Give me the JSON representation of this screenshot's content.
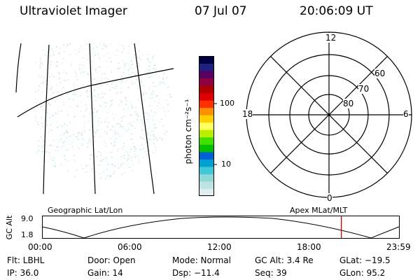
{
  "header": {
    "title": "Ultraviolet Imager",
    "date": "07 Jul 07",
    "time": "20:06:09 UT"
  },
  "colorbar": {
    "label": "photon cm⁻²s⁻¹",
    "ticks": [
      "100",
      "10"
    ],
    "colors": [
      "#dfeeee",
      "#bfe3e3",
      "#8fd8d8",
      "#40c8d8",
      "#00a0d0",
      "#0060d8",
      "#00c000",
      "#40e000",
      "#b8f000",
      "#ffff60",
      "#ffd000",
      "#ff9000",
      "#ff3000",
      "#e00000",
      "#b00000",
      "#900040",
      "#5a0060",
      "#202080",
      "#000040"
    ]
  },
  "polar": {
    "labels": {
      "top": "12",
      "bottom": "0",
      "left": "18",
      "right": "6"
    },
    "rings": [
      "60",
      "70",
      "80"
    ]
  },
  "timeline": {
    "left_label": "Geographic Lat/Lon",
    "right_label": "Apex  MLat/MLT",
    "axis_label": "GC Alt",
    "y_ticks": [
      "9.0",
      "1.8"
    ],
    "x_ticks": [
      "00:00",
      "06:00",
      "12:00",
      "18:00",
      "23:59"
    ],
    "current_time_fraction": 0.8376,
    "marker_color": "#d00000"
  },
  "footer": {
    "flt": "Flt: LBHL",
    "ip": "IP: 36.0",
    "door": "Door: Open",
    "gain": "Gain: 14",
    "mode": "Mode: Normal",
    "dsp": "Dsp:  −11.4",
    "gcalt": "GC Alt: 3.4 Re",
    "seq": "Seq: 39",
    "glat": "GLat: −19.5",
    "glon": "GLon:  95.2"
  }
}
